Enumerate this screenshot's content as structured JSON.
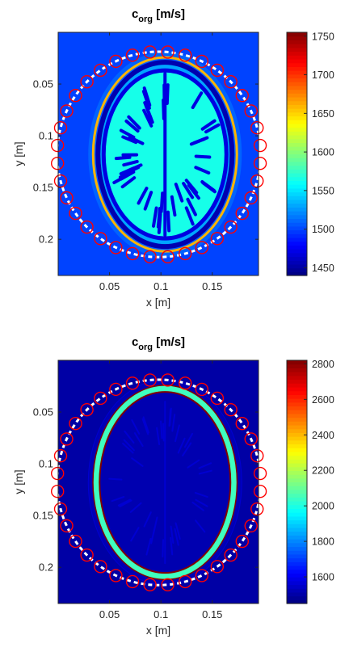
{
  "chart_data": [
    {
      "type": "heatmap",
      "title_main": "c",
      "title_sub": "org",
      "title_unit": " [m/s]",
      "xlabel": "x [m]",
      "ylabel": "y [m]",
      "xlim": [
        0.0,
        0.195
      ],
      "ylim": [
        0.0,
        0.235
      ],
      "y_reversed": true,
      "x_ticks": [
        0.05,
        0.1,
        0.15
      ],
      "x_tick_labels": [
        "0.05",
        "0.1",
        "0.15"
      ],
      "y_ticks": [
        0.05,
        0.1,
        0.15,
        0.2
      ],
      "y_tick_labels": [
        "0.05",
        "0.1",
        "0.15",
        "0.2"
      ],
      "colorbar": {
        "colormap": "jet",
        "range": [
          1440,
          1755
        ],
        "ticks": [
          1450,
          1500,
          1550,
          1600,
          1650,
          1700,
          1750
        ],
        "tick_labels": [
          "1450",
          "1500",
          "1550",
          "1600",
          "1650",
          "1700",
          "1750"
        ]
      },
      "regions": {
        "background_water": 1500,
        "scalp_skin": 1510,
        "skull_outer": 1660,
        "skull_inner": 1455,
        "brain_fluid": 1530,
        "white_matter": 1565,
        "gray_matter": 1470
      },
      "transducer_ring": {
        "center": [
          0.098,
          0.118
        ],
        "radius": 0.099,
        "marker_count": 36,
        "marker_color": "#ff0000"
      }
    },
    {
      "type": "heatmap",
      "title_main": "c",
      "title_sub": "org",
      "title_unit": " [m/s]",
      "xlabel": "x [m]",
      "ylabel": "y [m]",
      "xlim": [
        0.0,
        0.195
      ],
      "ylim": [
        0.0,
        0.235
      ],
      "y_reversed": true,
      "x_ticks": [
        0.05,
        0.1,
        0.15
      ],
      "x_tick_labels": [
        "0.05",
        "0.1",
        "0.15"
      ],
      "y_ticks": [
        0.05,
        0.1,
        0.15,
        0.2
      ],
      "y_tick_labels": [
        "0.05",
        "0.1",
        "0.15",
        "0.2"
      ],
      "colorbar": {
        "colormap": "jet",
        "range": [
          1450,
          2820
        ],
        "ticks": [
          1600,
          1800,
          2000,
          2200,
          2400,
          2600,
          2800
        ],
        "tick_labels": [
          "1600",
          "1800",
          "2000",
          "2200",
          "2400",
          "2600",
          "2800"
        ]
      },
      "regions": {
        "background_water": 1500,
        "scalp_skin": 1520,
        "skull_bone": 2050,
        "skull_cortical_edge": 2820,
        "brain_tissue": 1515,
        "brain_detail": 1560
      },
      "transducer_ring": {
        "center": [
          0.098,
          0.118
        ],
        "radius": 0.099,
        "marker_count": 36,
        "marker_color": "#ff0000"
      }
    }
  ]
}
